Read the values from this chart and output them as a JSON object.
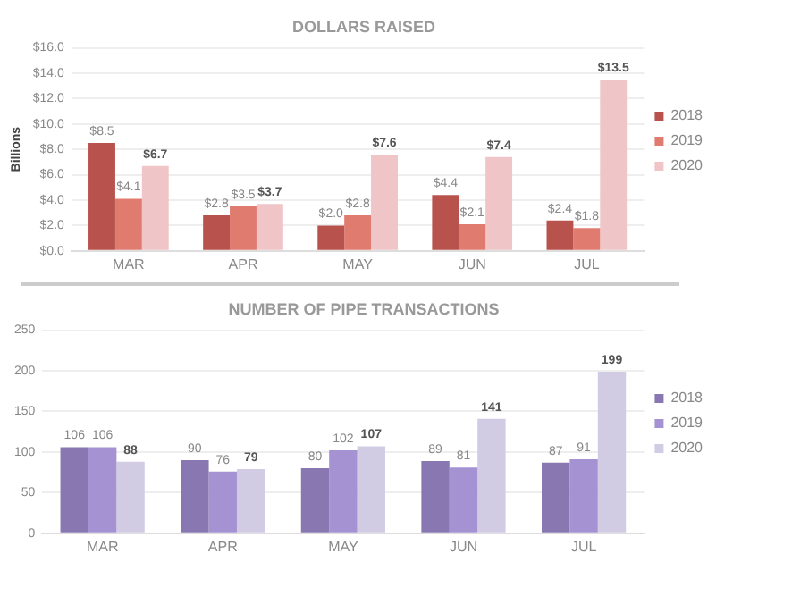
{
  "chart_data": [
    {
      "type": "bar",
      "title": "DOLLARS RAISED",
      "ylabel": "Billions",
      "categories": [
        "MAR",
        "APR",
        "MAY",
        "JUN",
        "JUL"
      ],
      "series": [
        {
          "name": "2018",
          "color": "#b8524c",
          "values": [
            8.5,
            2.8,
            2.0,
            4.4,
            2.4
          ],
          "value_labels": [
            "$8.5",
            "$2.8",
            "$2.0",
            "$4.4",
            "$2.4"
          ]
        },
        {
          "name": "2019",
          "color": "#e07b70",
          "values": [
            4.1,
            3.5,
            2.8,
            2.1,
            1.8
          ],
          "value_labels": [
            "$4.1",
            "$3.5",
            "$2.8",
            "$2.1",
            "$1.8"
          ]
        },
        {
          "name": "2020",
          "color": "#f0c5c7",
          "values": [
            6.7,
            3.7,
            7.6,
            7.4,
            13.5
          ],
          "value_labels": [
            "$6.7",
            "$3.7",
            "$7.6",
            "$7.4",
            "$13.5"
          ]
        }
      ],
      "ylim": [
        0,
        16
      ],
      "yticks": [
        {
          "value": 0,
          "label": "$0.0"
        },
        {
          "value": 2,
          "label": "$2.0"
        },
        {
          "value": 4,
          "label": "$4.0"
        },
        {
          "value": 6,
          "label": "$6.0"
        },
        {
          "value": 8,
          "label": "$8.0"
        },
        {
          "value": 10,
          "label": "$10.0"
        },
        {
          "value": 12,
          "label": "$12.0"
        },
        {
          "value": 14,
          "label": "$14.0"
        },
        {
          "value": 16,
          "label": "$16.0"
        }
      ],
      "grid": "y",
      "legend": "right"
    },
    {
      "type": "bar",
      "title": "NUMBER OF PIPE TRANSACTIONS",
      "categories": [
        "MAR",
        "APR",
        "MAY",
        "JUN",
        "JUL"
      ],
      "series": [
        {
          "name": "2018",
          "color": "#8877b0",
          "values": [
            106,
            90,
            80,
            89,
            87
          ]
        },
        {
          "name": "2019",
          "color": "#a592d2",
          "values": [
            106,
            76,
            102,
            81,
            91
          ]
        },
        {
          "name": "2020",
          "color": "#d2cbe4",
          "values": [
            88,
            79,
            107,
            141,
            199
          ]
        }
      ],
      "ylim": [
        0,
        250
      ],
      "yticks": [
        0,
        50,
        100,
        150,
        200,
        250
      ],
      "grid": "y",
      "legend": "right",
      "data_labels": true
    }
  ]
}
